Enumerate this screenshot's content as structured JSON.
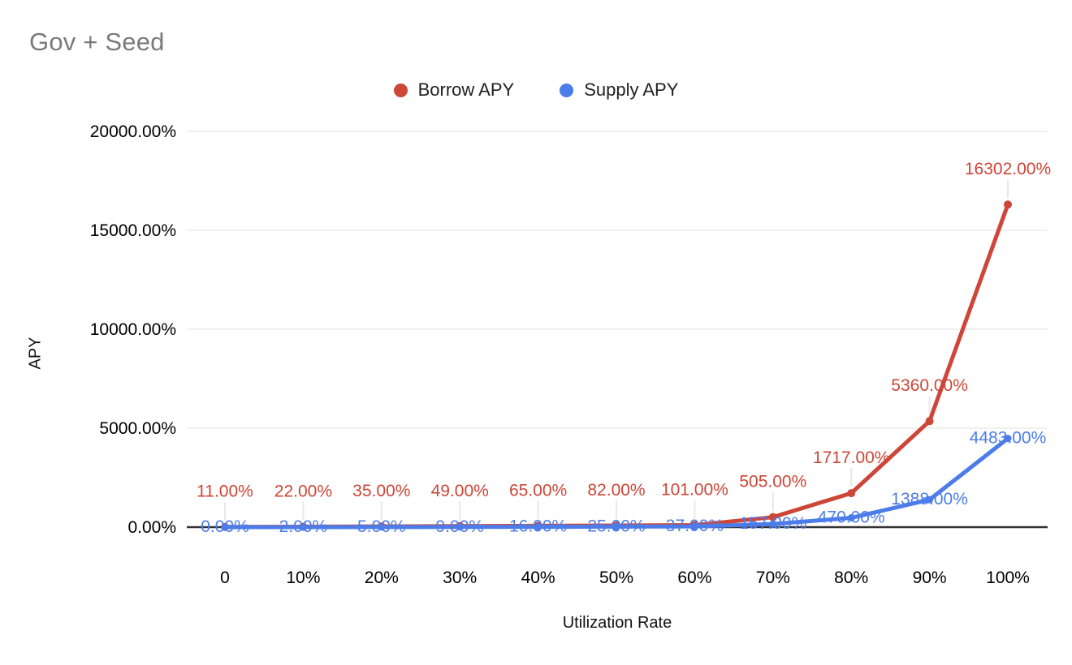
{
  "title": "Gov + Seed",
  "chart_data": {
    "type": "line",
    "x": [
      0,
      10,
      20,
      30,
      40,
      50,
      60,
      70,
      80,
      90,
      100
    ],
    "x_tick_labels": [
      "0",
      "10%",
      "20%",
      "30%",
      "40%",
      "50%",
      "60%",
      "70%",
      "80%",
      "90%",
      "100%"
    ],
    "xlabel": "Utilization Rate",
    "ylabel": "APY",
    "ylim": [
      0,
      20000
    ],
    "y_ticks": [
      0,
      5000,
      10000,
      15000,
      20000
    ],
    "y_tick_labels": [
      "0.00%",
      "5000.00%",
      "10000.00%",
      "15000.00%",
      "20000.00%"
    ],
    "grid": true,
    "legend_position": "top",
    "series": [
      {
        "name": "Borrow APY",
        "color": "#cd4637",
        "values": [
          11,
          22,
          35,
          49,
          65,
          82,
          101,
          505,
          1717,
          5360,
          16302
        ],
        "labels": [
          "11.00%",
          "22.00%",
          "35.00%",
          "49.00%",
          "65.00%",
          "82.00%",
          "101.00%",
          "505.00%",
          "1717.00%",
          "5360.00%",
          "16302.00%"
        ]
      },
      {
        "name": "Supply APY",
        "color": "#4c7cea",
        "values": [
          0,
          2,
          5,
          9,
          16,
          25,
          37,
          157,
          470,
          1388,
          4483
        ],
        "labels": [
          "0.00%",
          "2.00%",
          "5.00%",
          "9.00%",
          "16.00%",
          "25.00%",
          "37.00%",
          "157.00%",
          "470.00%",
          "1388.00%",
          "4483.00%"
        ]
      }
    ],
    "colors": {
      "gridline": "#e2e2e2",
      "baseline": "#333333",
      "leader_line": "#e8e8e8",
      "tick_text": "#000000",
      "title_text": "#7a7a7a"
    }
  }
}
